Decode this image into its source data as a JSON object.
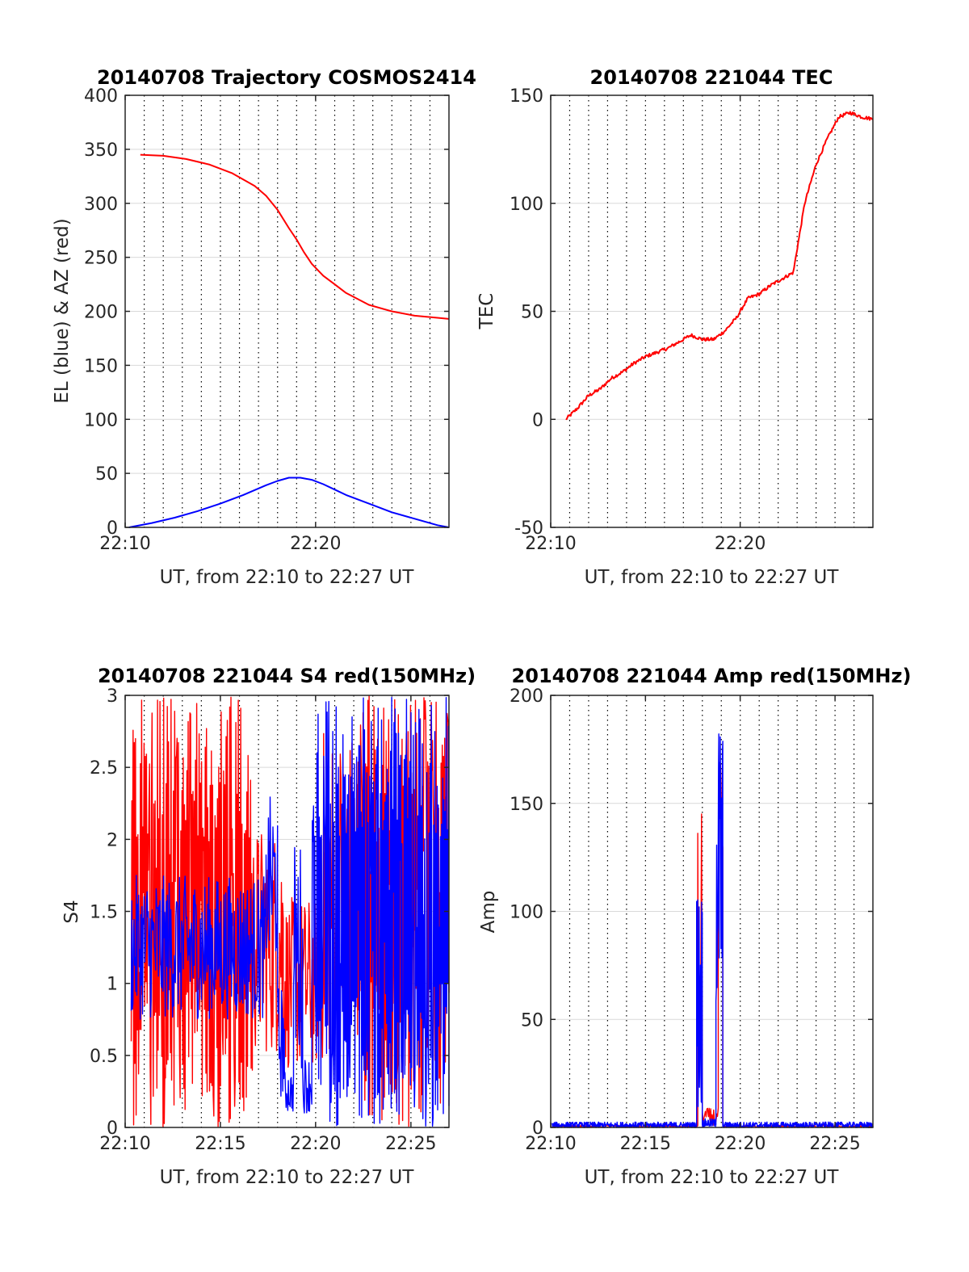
{
  "figure": {
    "colors": {
      "red": "#ff0000",
      "blue": "#0000ff",
      "grid": "#d9d9d9",
      "axis": "#262626"
    }
  },
  "chart_data": [
    {
      "type": "line",
      "title": "20140708 Trajectory COSMOS2414",
      "xlabel": "UT, from 22:10 to 22:27 UT",
      "ylabel": "EL (blue) & AZ (red)",
      "xlim": [
        22.1667,
        22.45
      ],
      "ylim": [
        0,
        400
      ],
      "yticks": [
        0,
        50,
        100,
        150,
        200,
        250,
        300,
        350,
        400
      ],
      "xticks": [
        {
          "v": 22.1667,
          "label": "22:10"
        },
        {
          "v": 22.3333,
          "label": "22:20"
        }
      ],
      "minor_x_interval_min": 1,
      "grid": true,
      "series": [
        {
          "color": "#ff0000",
          "kind": "curve",
          "x": [
            22.18,
            22.2,
            22.22,
            22.24,
            22.26,
            22.28,
            22.29,
            22.3,
            22.31,
            22.317,
            22.323,
            22.33,
            22.34,
            22.35,
            22.36,
            22.38,
            22.4,
            22.42,
            22.44,
            22.45
          ],
          "y": [
            345,
            344,
            341,
            336,
            328,
            316,
            307,
            294,
            277,
            266,
            255,
            244,
            233,
            225,
            217,
            206,
            200,
            196,
            194,
            193
          ]
        },
        {
          "color": "#0000ff",
          "kind": "curve",
          "x": [
            22.17,
            22.19,
            22.21,
            22.23,
            22.25,
            22.27,
            22.29,
            22.3,
            22.31,
            22.32,
            22.33,
            22.34,
            22.35,
            22.36,
            22.38,
            22.4,
            22.42,
            22.44,
            22.45
          ],
          "y": [
            0,
            4,
            9,
            15,
            22,
            30,
            39,
            43,
            46,
            46,
            44,
            40,
            35,
            30,
            22,
            14,
            8,
            2,
            0
          ]
        }
      ]
    },
    {
      "type": "line",
      "title": "20140708 221044 TEC",
      "xlabel": "UT, from 22:10 to 22:27 UT",
      "ylabel": "TEC",
      "xlim": [
        22.1667,
        22.45
      ],
      "ylim": [
        -50,
        150
      ],
      "yticks": [
        -50,
        0,
        50,
        100,
        150
      ],
      "xticks": [
        {
          "v": 22.1667,
          "label": "22:10"
        },
        {
          "v": 22.3333,
          "label": "22:20"
        }
      ],
      "minor_x_interval_min": 1,
      "grid": true,
      "series": [
        {
          "color": "#ff0000",
          "kind": "jitter",
          "noise": 0.8,
          "x": [
            22.18,
            22.19,
            22.2,
            22.21,
            22.22,
            22.23,
            22.24,
            22.25,
            22.26,
            22.27,
            22.28,
            22.29,
            22.3,
            22.31,
            22.32,
            22.33,
            22.34,
            22.35,
            22.36,
            22.37,
            22.38,
            22.39,
            22.4,
            22.41,
            22.42,
            22.43,
            22.44,
            22.45
          ],
          "y": [
            0,
            5,
            11,
            14,
            19,
            22,
            26,
            29,
            31,
            33,
            36,
            39,
            37,
            37,
            41,
            47,
            56,
            58,
            62,
            65,
            68,
            100,
            118,
            130,
            140,
            142,
            140,
            139
          ]
        }
      ]
    },
    {
      "type": "line",
      "title": "20140708 221044 S4 red(150MHz)",
      "xlabel": "UT, from 22:10 to 22:27 UT",
      "ylabel": "S4",
      "xlim": [
        22.1667,
        22.45
      ],
      "ylim": [
        0,
        3
      ],
      "yticks": [
        0,
        0.5,
        1,
        1.5,
        2,
        2.5,
        3
      ],
      "yticklabels": [
        "0",
        "0.5",
        "1",
        "1.5",
        "2",
        "2.5",
        "3"
      ],
      "xticks": [
        {
          "v": 22.1667,
          "label": "22:10"
        },
        {
          "v": 22.25,
          "label": "22:15"
        },
        {
          "v": 22.3333,
          "label": "22:20"
        },
        {
          "v": 22.4167,
          "label": "22:25"
        }
      ],
      "minor_x_interval_min": 1,
      "grid": true,
      "series": [
        {
          "color": "#ff0000",
          "kind": "noise",
          "n": 520,
          "segments": [
            {
              "x0": 22.172,
              "x1": 22.278,
              "mode": "wild",
              "lo": 0,
              "hi": 3
            },
            {
              "x0": 22.278,
              "x1": 22.305,
              "mode": "band",
              "base": 1.3,
              "amp": 0.8
            },
            {
              "x0": 22.305,
              "x1": 22.335,
              "mode": "band",
              "base": 1.0,
              "amp": 0.6
            },
            {
              "x0": 22.335,
              "x1": 22.37,
              "mode": "band",
              "base": 1.6,
              "amp": 1.2
            },
            {
              "x0": 22.37,
              "x1": 22.45,
              "mode": "wild",
              "lo": 0,
              "hi": 3
            }
          ]
        },
        {
          "color": "#0000ff",
          "kind": "noise",
          "n": 560,
          "segments": [
            {
              "x0": 22.172,
              "x1": 22.29,
              "mode": "band",
              "base": 1.25,
              "amp": 0.5
            },
            {
              "x0": 22.29,
              "x1": 22.3,
              "mode": "band",
              "base": 1.7,
              "amp": 0.6
            },
            {
              "x0": 22.3,
              "x1": 22.306,
              "mode": "band",
              "base": 0.6,
              "amp": 0.4
            },
            {
              "x0": 22.306,
              "x1": 22.314,
              "mode": "band",
              "base": 0.25,
              "amp": 0.15
            },
            {
              "x0": 22.314,
              "x1": 22.322,
              "mode": "band",
              "base": 1.2,
              "amp": 0.8
            },
            {
              "x0": 22.322,
              "x1": 22.33,
              "mode": "band",
              "base": 0.3,
              "amp": 0.2
            },
            {
              "x0": 22.33,
              "x1": 22.45,
              "mode": "wild",
              "lo": 0,
              "hi": 3
            }
          ]
        }
      ]
    },
    {
      "type": "line",
      "title": "20140708 221044 Amp red(150MHz)",
      "xlabel": "UT, from 22:10 to 22:27 UT",
      "ylabel": "Amp",
      "xlim": [
        22.1667,
        22.45
      ],
      "ylim": [
        0,
        200
      ],
      "yticks": [
        0,
        50,
        100,
        150,
        200
      ],
      "xticks": [
        {
          "v": 22.1667,
          "label": "22:10"
        },
        {
          "v": 22.25,
          "label": "22:15"
        },
        {
          "v": 22.3333,
          "label": "22:20"
        },
        {
          "v": 22.4167,
          "label": "22:25"
        }
      ],
      "minor_x_interval_min": 1,
      "grid": true,
      "series": [
        {
          "color": "#ff0000",
          "kind": "noise",
          "n": 420,
          "segments": [
            {
              "x0": 22.168,
              "x1": 22.296,
              "mode": "band",
              "base": 0.5,
              "amp": 0.6
            },
            {
              "x0": 22.296,
              "x1": 22.3,
              "mode": "band",
              "base": 70,
              "amp": 80
            },
            {
              "x0": 22.3,
              "x1": 22.314,
              "mode": "band",
              "base": 5,
              "amp": 4
            },
            {
              "x0": 22.314,
              "x1": 22.318,
              "mode": "band",
              "base": 100,
              "amp": 75
            },
            {
              "x0": 22.318,
              "x1": 22.45,
              "mode": "band",
              "base": 0.5,
              "amp": 0.6
            }
          ]
        },
        {
          "color": "#0000ff",
          "kind": "noise",
          "n": 900,
          "segments": [
            {
              "x0": 22.168,
              "x1": 22.295,
              "mode": "band",
              "base": 1.0,
              "amp": 1.5
            },
            {
              "x0": 22.295,
              "x1": 22.3,
              "mode": "band",
              "base": 60,
              "amp": 55
            },
            {
              "x0": 22.3,
              "x1": 22.312,
              "mode": "band",
              "base": 2,
              "amp": 2
            },
            {
              "x0": 22.312,
              "x1": 22.318,
              "mode": "band",
              "base": 120,
              "amp": 75
            },
            {
              "x0": 22.318,
              "x1": 22.45,
              "mode": "band",
              "base": 1.0,
              "amp": 1.5
            }
          ]
        }
      ]
    }
  ]
}
